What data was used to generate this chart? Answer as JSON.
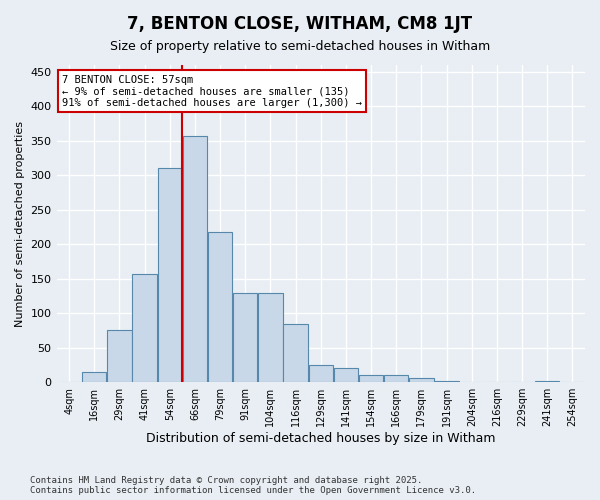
{
  "title": "7, BENTON CLOSE, WITHAM, CM8 1JT",
  "subtitle": "Size of property relative to semi-detached houses in Witham",
  "xlabel": "Distribution of semi-detached houses by size in Witham",
  "ylabel": "Number of semi-detached properties",
  "footnote": "Contains HM Land Registry data © Crown copyright and database right 2025.\nContains public sector information licensed under the Open Government Licence v3.0.",
  "bar_labels": [
    "4sqm",
    "16sqm",
    "29sqm",
    "41sqm",
    "54sqm",
    "66sqm",
    "79sqm",
    "91sqm",
    "104sqm",
    "116sqm",
    "129sqm",
    "141sqm",
    "154sqm",
    "166sqm",
    "179sqm",
    "191sqm",
    "204sqm",
    "216sqm",
    "229sqm",
    "241sqm",
    "254sqm"
  ],
  "bar_values": [
    0,
    15,
    75,
    157,
    310,
    357,
    218,
    130,
    130,
    85,
    25,
    20,
    10,
    10,
    6,
    2,
    0,
    0,
    0,
    2,
    0
  ],
  "bar_color": "#c8d8e8",
  "bar_edge_color": "#5588aa",
  "background_color": "#e8eef4",
  "grid_color": "#ffffff",
  "vline_color": "#cc0000",
  "ylim": [
    0,
    460
  ],
  "yticks": [
    0,
    50,
    100,
    150,
    200,
    250,
    300,
    350,
    400,
    450
  ],
  "annotation_text": "7 BENTON CLOSE: 57sqm\n← 9% of semi-detached houses are smaller (135)\n91% of semi-detached houses are larger (1,300) →",
  "annotation_box_color": "#ffffff",
  "annotation_border_color": "#cc0000",
  "vline_index": 5
}
